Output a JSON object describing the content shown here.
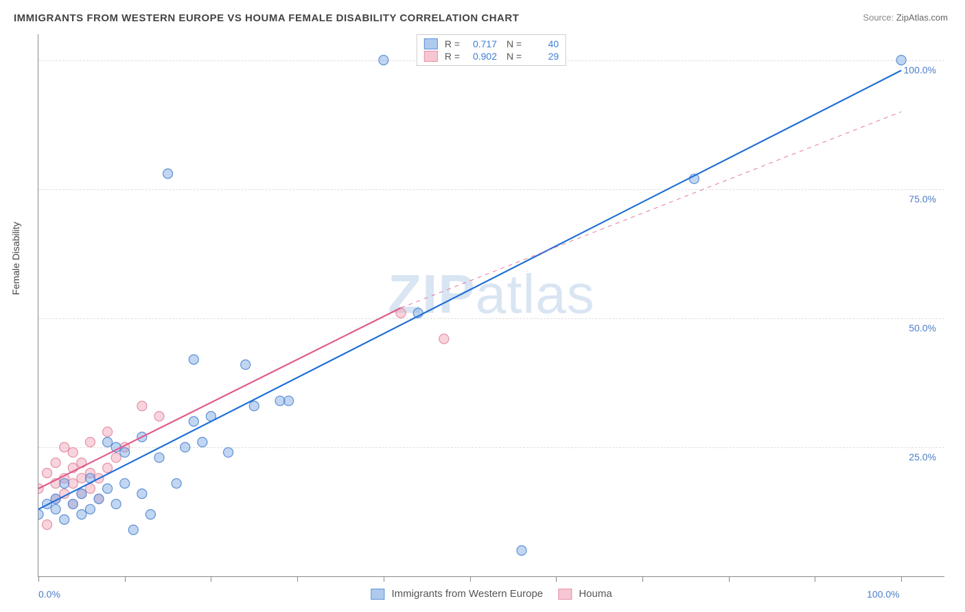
{
  "title": "IMMIGRANTS FROM WESTERN EUROPE VS HOUMA FEMALE DISABILITY CORRELATION CHART",
  "source": {
    "label": "Source:",
    "value": "ZipAtlas.com"
  },
  "watermark": "ZIPatlas",
  "ylabel": "Female Disability",
  "chart": {
    "type": "scatter",
    "background_color": "#ffffff",
    "grid_color": "#dddddd",
    "axis_color": "#888888",
    "xlim": [
      0,
      105
    ],
    "ylim": [
      0,
      105
    ],
    "x_ticks": [
      0,
      10,
      20,
      30,
      40,
      50,
      60,
      70,
      80,
      90,
      100
    ],
    "x_tick_labels": {
      "0": "0.0%",
      "100": "100.0%"
    },
    "y_gridlines": [
      25,
      50,
      75,
      100
    ],
    "y_tick_labels": {
      "25": "25.0%",
      "50": "50.0%",
      "75": "75.0%",
      "100": "100.0%"
    },
    "marker_radius": 7,
    "marker_stroke_width": 1.2,
    "line_width": 2.2,
    "series": [
      {
        "id": "western_europe",
        "label": "Immigrants from Western Europe",
        "fill_color": "rgba(120,165,225,0.45)",
        "stroke_color": "#5b8fd6",
        "line_color": "#1f6fd6",
        "swatch_fill": "#aecbef",
        "swatch_border": "#5b8fd6",
        "R": "0.717",
        "N": "40",
        "trend_solid": {
          "x1": 0,
          "y1": 13,
          "x2": 100,
          "y2": 98
        },
        "points": [
          [
            0,
            12
          ],
          [
            1,
            14
          ],
          [
            2,
            13
          ],
          [
            2,
            15
          ],
          [
            3,
            11
          ],
          [
            3,
            18
          ],
          [
            4,
            14
          ],
          [
            5,
            12
          ],
          [
            5,
            16
          ],
          [
            6,
            13
          ],
          [
            6,
            19
          ],
          [
            7,
            15
          ],
          [
            8,
            17
          ],
          [
            8,
            26
          ],
          [
            9,
            14
          ],
          [
            9,
            25
          ],
          [
            10,
            18
          ],
          [
            10,
            24
          ],
          [
            11,
            9
          ],
          [
            12,
            16
          ],
          [
            12,
            27
          ],
          [
            13,
            12
          ],
          [
            14,
            23
          ],
          [
            15,
            78
          ],
          [
            16,
            18
          ],
          [
            17,
            25
          ],
          [
            18,
            30
          ],
          [
            18,
            42
          ],
          [
            19,
            26
          ],
          [
            20,
            31
          ],
          [
            22,
            24
          ],
          [
            24,
            41
          ],
          [
            25,
            33
          ],
          [
            28,
            34
          ],
          [
            29,
            34
          ],
          [
            40,
            100
          ],
          [
            56,
            5
          ],
          [
            76,
            77
          ],
          [
            100,
            100
          ],
          [
            44,
            51
          ]
        ]
      },
      {
        "id": "houma",
        "label": "Houma",
        "fill_color": "rgba(240,160,180,0.45)",
        "stroke_color": "#e58fa6",
        "line_color": "#e05a8a",
        "swatch_fill": "#f6c6d2",
        "swatch_border": "#e58fa6",
        "R": "0.902",
        "N": "29",
        "trend_solid": {
          "x1": 0,
          "y1": 17,
          "x2": 42,
          "y2": 52
        },
        "trend_dashed": {
          "x1": 42,
          "y1": 52,
          "x2": 100,
          "y2": 90
        },
        "points": [
          [
            0,
            17
          ],
          [
            1,
            10
          ],
          [
            1,
            20
          ],
          [
            2,
            15
          ],
          [
            2,
            18
          ],
          [
            2,
            22
          ],
          [
            3,
            16
          ],
          [
            3,
            19
          ],
          [
            3,
            25
          ],
          [
            4,
            14
          ],
          [
            4,
            18
          ],
          [
            4,
            21
          ],
          [
            4,
            24
          ],
          [
            5,
            16
          ],
          [
            5,
            19
          ],
          [
            5,
            22
          ],
          [
            6,
            17
          ],
          [
            6,
            20
          ],
          [
            6,
            26
          ],
          [
            7,
            15
          ],
          [
            7,
            19
          ],
          [
            8,
            21
          ],
          [
            8,
            28
          ],
          [
            9,
            23
          ],
          [
            10,
            25
          ],
          [
            12,
            33
          ],
          [
            14,
            31
          ],
          [
            42,
            51
          ],
          [
            47,
            46
          ]
        ]
      }
    ]
  }
}
